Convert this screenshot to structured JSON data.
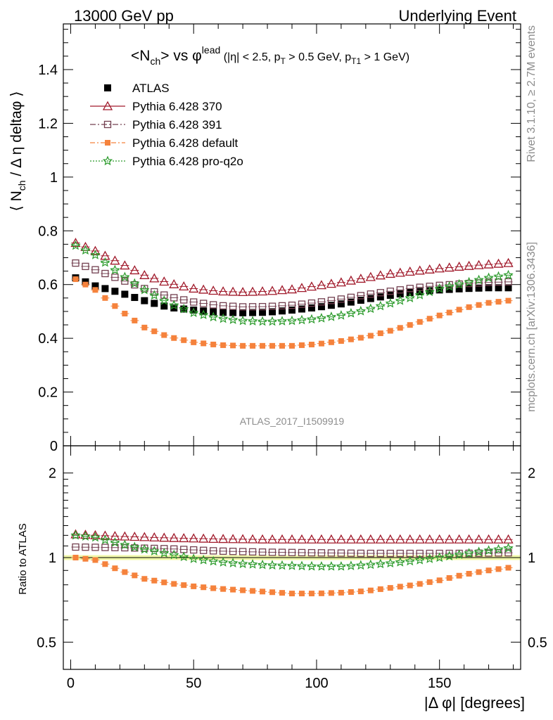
{
  "header": {
    "left": "13000 GeV pp",
    "right": "Underlying Event"
  },
  "side_labels": {
    "rivet": "Rivet 3.1.10, ≥ 2.7M events",
    "mcplots": "mcplots.cern.ch [arXiv:1306.3436]"
  },
  "watermark": "ATLAS_2017_I1509919",
  "chart_data": [
    {
      "type": "scatter",
      "panel": "main",
      "title": "<N_ch> vs φ^lead (|η| < 2.5, p_T > 0.5 GeV, p_T1 > 1 GeV)",
      "title_parts": {
        "a": "<N",
        "a_sub": "ch",
        "b": "> vs φ",
        "b_sup": "lead",
        "c": " (|η| < 2.5, p",
        "c_sub": "T",
        "d": " > 0.5 GeV, p",
        "d_sub": "T1",
        "e": " > 1 GeV)"
      },
      "ylabel": "⟨ N_ch / Δη deltaφ ⟩",
      "ylabel_parts": {
        "pre": "⟨ N",
        "sub": "ch",
        "post": " / Δ η deltaφ ⟩"
      },
      "xlim": [
        -3,
        183
      ],
      "ylim": [
        0,
        1.57
      ],
      "y_ticks": [
        "0",
        "0.2",
        "0.4",
        "0.6",
        "0.8",
        "1",
        "1.2",
        "1.4"
      ],
      "legend_position": "top-left",
      "series": [
        {
          "name": "ATLAS",
          "color": "#000000",
          "marker": "filled-square",
          "anchors": [
            [
              2,
              0.625
            ],
            [
              10,
              0.595
            ],
            [
              20,
              0.57
            ],
            [
              30,
              0.54
            ],
            [
              40,
              0.515
            ],
            [
              50,
              0.505
            ],
            [
              60,
              0.497
            ],
            [
              70,
              0.495
            ],
            [
              80,
              0.497
            ],
            [
              90,
              0.505
            ],
            [
              100,
              0.515
            ],
            [
              110,
              0.528
            ],
            [
              120,
              0.545
            ],
            [
              130,
              0.56
            ],
            [
              140,
              0.573
            ],
            [
              150,
              0.58
            ],
            [
              160,
              0.585
            ],
            [
              170,
              0.588
            ],
            [
              178,
              0.588
            ]
          ]
        },
        {
          "name": "Pythia 6.428 370",
          "color": "#a0192a",
          "marker": "open-triangle",
          "anchors": [
            [
              2,
              0.755
            ],
            [
              10,
              0.725
            ],
            [
              20,
              0.68
            ],
            [
              30,
              0.635
            ],
            [
              40,
              0.605
            ],
            [
              50,
              0.585
            ],
            [
              60,
              0.575
            ],
            [
              70,
              0.572
            ],
            [
              80,
              0.575
            ],
            [
              90,
              0.582
            ],
            [
              100,
              0.595
            ],
            [
              110,
              0.608
            ],
            [
              120,
              0.625
            ],
            [
              130,
              0.64
            ],
            [
              140,
              0.65
            ],
            [
              150,
              0.66
            ],
            [
              160,
              0.668
            ],
            [
              170,
              0.675
            ],
            [
              178,
              0.68
            ]
          ]
        },
        {
          "name": "Pythia 6.428 391",
          "color": "#734050",
          "marker": "open-square",
          "anchors": [
            [
              2,
              0.68
            ],
            [
              10,
              0.655
            ],
            [
              20,
              0.62
            ],
            [
              30,
              0.585
            ],
            [
              40,
              0.555
            ],
            [
              50,
              0.535
            ],
            [
              60,
              0.522
            ],
            [
              70,
              0.517
            ],
            [
              80,
              0.518
            ],
            [
              90,
              0.523
            ],
            [
              100,
              0.533
            ],
            [
              110,
              0.546
            ],
            [
              120,
              0.562
            ],
            [
              130,
              0.575
            ],
            [
              140,
              0.588
            ],
            [
              150,
              0.597
            ],
            [
              160,
              0.603
            ],
            [
              170,
              0.608
            ],
            [
              178,
              0.61
            ]
          ]
        },
        {
          "name": "Pythia 6.428 default",
          "color": "#f5823c",
          "marker": "filled-square-small",
          "anchors": [
            [
              2,
              0.62
            ],
            [
              10,
              0.58
            ],
            [
              20,
              0.505
            ],
            [
              30,
              0.44
            ],
            [
              40,
              0.405
            ],
            [
              50,
              0.385
            ],
            [
              60,
              0.375
            ],
            [
              70,
              0.372
            ],
            [
              80,
              0.372
            ],
            [
              90,
              0.372
            ],
            [
              100,
              0.378
            ],
            [
              110,
              0.39
            ],
            [
              120,
              0.405
            ],
            [
              130,
              0.428
            ],
            [
              140,
              0.455
            ],
            [
              150,
              0.485
            ],
            [
              160,
              0.512
            ],
            [
              170,
              0.532
            ],
            [
              178,
              0.54
            ]
          ]
        },
        {
          "name": "Pythia 6.428 pro-q2o",
          "color": "#2a9a2a",
          "marker": "open-star",
          "anchors": [
            [
              2,
              0.745
            ],
            [
              10,
              0.71
            ],
            [
              20,
              0.64
            ],
            [
              30,
              0.58
            ],
            [
              40,
              0.53
            ],
            [
              50,
              0.495
            ],
            [
              60,
              0.475
            ],
            [
              70,
              0.465
            ],
            [
              80,
              0.462
            ],
            [
              90,
              0.465
            ],
            [
              100,
              0.472
            ],
            [
              110,
              0.485
            ],
            [
              120,
              0.505
            ],
            [
              130,
              0.53
            ],
            [
              140,
              0.555
            ],
            [
              150,
              0.585
            ],
            [
              160,
              0.605
            ],
            [
              170,
              0.625
            ],
            [
              178,
              0.635
            ]
          ]
        }
      ]
    },
    {
      "type": "scatter",
      "panel": "ratio",
      "ylabel": "Ratio to ATLAS",
      "xlabel": "|Δ φ| [degrees]",
      "xlim": [
        -3,
        183
      ],
      "ylim": [
        0.4,
        2.5
      ],
      "y_scale": "log",
      "y_ticks": [
        "0.5",
        "1",
        "2"
      ],
      "x_ticks": [
        "0",
        "50",
        "100",
        "150"
      ],
      "series": [
        {
          "name": "Pythia 6.428 370",
          "color": "#a0192a",
          "marker": "open-triangle",
          "anchors": [
            [
              2,
              1.21
            ],
            [
              20,
              1.19
            ],
            [
              40,
              1.175
            ],
            [
              60,
              1.165
            ],
            [
              80,
              1.16
            ],
            [
              100,
              1.16
            ],
            [
              120,
              1.16
            ],
            [
              140,
              1.16
            ],
            [
              160,
              1.16
            ],
            [
              178,
              1.16
            ]
          ]
        },
        {
          "name": "Pythia 6.428 391",
          "color": "#734050",
          "marker": "open-square",
          "anchors": [
            [
              2,
              1.09
            ],
            [
              20,
              1.085
            ],
            [
              40,
              1.075
            ],
            [
              60,
              1.055
            ],
            [
              80,
              1.045
            ],
            [
              100,
              1.04
            ],
            [
              120,
              1.035
            ],
            [
              140,
              1.035
            ],
            [
              160,
              1.035
            ],
            [
              178,
              1.04
            ]
          ]
        },
        {
          "name": "Pythia 6.428 default",
          "color": "#f5823c",
          "marker": "filled-square-small",
          "anchors": [
            [
              2,
              1.0
            ],
            [
              10,
              0.98
            ],
            [
              20,
              0.9
            ],
            [
              30,
              0.84
            ],
            [
              40,
              0.81
            ],
            [
              50,
              0.79
            ],
            [
              60,
              0.775
            ],
            [
              70,
              0.765
            ],
            [
              80,
              0.755
            ],
            [
              90,
              0.745
            ],
            [
              100,
              0.745
            ],
            [
              110,
              0.75
            ],
            [
              120,
              0.76
            ],
            [
              130,
              0.78
            ],
            [
              140,
              0.8
            ],
            [
              150,
              0.83
            ],
            [
              160,
              0.87
            ],
            [
              170,
              0.9
            ],
            [
              178,
              0.92
            ]
          ]
        },
        {
          "name": "Pythia 6.428 pro-q2o",
          "color": "#2a9a2a",
          "marker": "open-star",
          "anchors": [
            [
              2,
              1.2
            ],
            [
              10,
              1.18
            ],
            [
              20,
              1.12
            ],
            [
              30,
              1.07
            ],
            [
              40,
              1.03
            ],
            [
              50,
              0.99
            ],
            [
              60,
              0.965
            ],
            [
              70,
              0.95
            ],
            [
              80,
              0.94
            ],
            [
              90,
              0.935
            ],
            [
              100,
              0.93
            ],
            [
              110,
              0.93
            ],
            [
              120,
              0.94
            ],
            [
              130,
              0.955
            ],
            [
              140,
              0.975
            ],
            [
              150,
              1.0
            ],
            [
              160,
              1.03
            ],
            [
              170,
              1.06
            ],
            [
              178,
              1.08
            ]
          ]
        }
      ]
    }
  ]
}
